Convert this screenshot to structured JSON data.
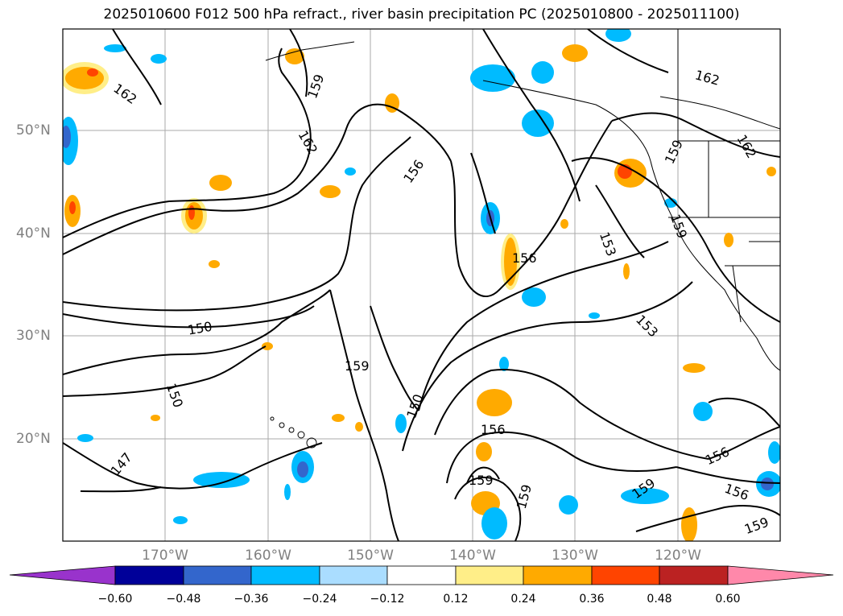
{
  "title": "2025010600 F012 500 hPa refract., river basin precipitation PC (2025010800 - 2025011100)",
  "lat_labels": [
    "50°N",
    "40°N",
    "30°N",
    "20°N"
  ],
  "lon_labels": [
    "170°W",
    "160°W",
    "150°W",
    "140°W",
    "130°W",
    "120°W"
  ],
  "contour_labels": [
    "162",
    "159",
    "162",
    "162",
    "156",
    "159",
    "162",
    "159",
    "153",
    "156",
    "159",
    "150",
    "150",
    "153",
    "159",
    "147",
    "150",
    "156",
    "156",
    "159",
    "159",
    "156",
    "159"
  ],
  "colorbar": {
    "colors": [
      "#9933cc",
      "#000099",
      "#3366cc",
      "#00bbff",
      "#aaddff",
      "#ffffff",
      "#ffee88",
      "#ffaa00",
      "#ff4400",
      "#bb2222",
      "#ff88aa"
    ],
    "ticks": [
      "−0.60",
      "−0.48",
      "−0.36",
      "−0.24",
      "−0.12",
      "0.12",
      "0.24",
      "0.36",
      "0.48",
      "0.60"
    ]
  },
  "colors": {
    "positive": "#ffaa00",
    "positive_strong": "#ff4400",
    "negative": "#00bbff",
    "negative_strong": "#3366cc",
    "grid": "#999999"
  }
}
